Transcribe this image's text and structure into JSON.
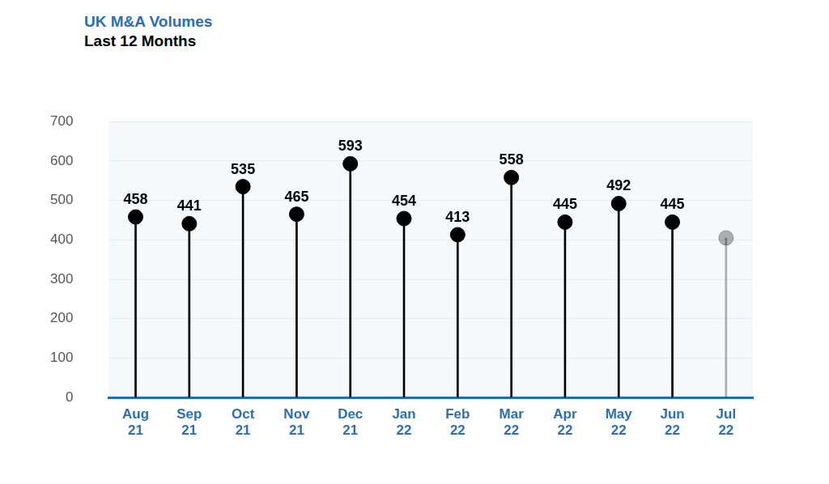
{
  "chart_data": {
    "type": "lollipop",
    "title": "UK M&A Volumes",
    "subtitle": "Last 12 Months",
    "categories": [
      "Aug 21",
      "Sep 21",
      "Oct 21",
      "Nov 21",
      "Dec 21",
      "Jan 22",
      "Feb 22",
      "Mar 22",
      "Apr 22",
      "May 22",
      "Jun 22",
      "Jul 22"
    ],
    "values": [
      458,
      441,
      535,
      465,
      593,
      454,
      413,
      558,
      445,
      492,
      445,
      405
    ],
    "value_labels": [
      "458",
      "441",
      "535",
      "465",
      "593",
      "454",
      "413",
      "558",
      "445",
      "492",
      "445",
      null
    ],
    "color": "#000000",
    "ylim": [
      0,
      700
    ],
    "yticks": [
      0,
      100,
      200,
      300,
      400,
      500,
      600,
      700
    ],
    "grid": true,
    "data_labels": true
  }
}
